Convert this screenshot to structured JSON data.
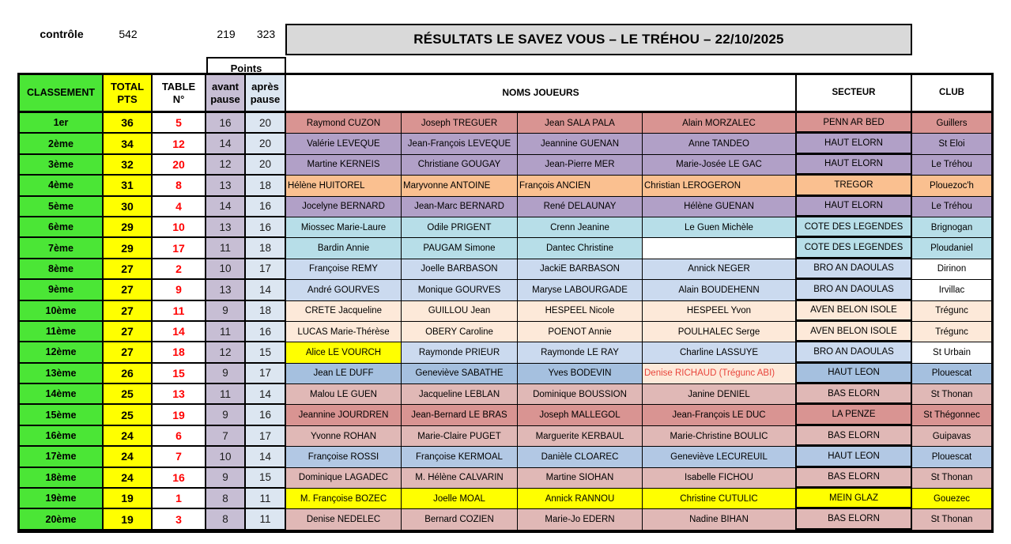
{
  "control": {
    "label": "contrôle",
    "total": "542",
    "avant": "219",
    "apres": "323"
  },
  "title": "RÉSULTATS LE SAVEZ VOUS – LE TRÉHOU – 22/10/2025",
  "points_label": "Points",
  "headers": {
    "classement": "CLASSEMENT",
    "total_line1": "TOTAL",
    "total_line2": "PTS",
    "table_line1": "TABLE",
    "table_line2": "N°",
    "avant_line1": "avant",
    "avant_line2": "pause",
    "apres_line1": "après",
    "apres_line2": "pause",
    "noms": "NOMS JOUEURS",
    "secteur": "SECTEUR",
    "club": "CLUB"
  },
  "colors": {
    "green": "#4BE636",
    "yellow": "#FFFF00",
    "lavender": "#C7BED4",
    "lightblue": "#DCE6F1",
    "titlegray": "#D9D9D9",
    "salmon": "#D99492",
    "purple": "#B1A0C7",
    "orange": "#FAC090",
    "cyan": "#B7DEE8",
    "iceblue": "#CBDAEF",
    "peach": "#FDE9D9",
    "medblue": "#A5C0DF",
    "periwinkle": "#B2C8E4",
    "rose": "#E0B8B6",
    "white": "#FFFFFF",
    "rednum": "#FF0000",
    "redtext": "#E8453C"
  },
  "rows": [
    {
      "rank": "1er",
      "total": "36",
      "table": "5",
      "avant": "16",
      "apres": "20",
      "players": [
        "Raymond CUZON",
        "Joseph TREGUER",
        "Jean SALA PALA",
        "Alain MORZALEC"
      ],
      "secteur": "PENN AR BED",
      "club": "Guillers",
      "bg": "salmon"
    },
    {
      "rank": "2ème",
      "total": "34",
      "table": "12",
      "avant": "14",
      "apres": "20",
      "players": [
        "Valérie LEVEQUE",
        "Jean-François LEVEQUE",
        "Jeannine GUENAN",
        "Anne TANDEO"
      ],
      "secteur": "HAUT ELORN",
      "club": "St Eloi",
      "bg": "purple"
    },
    {
      "rank": "3ème",
      "total": "32",
      "table": "20",
      "avant": "12",
      "apres": "20",
      "players": [
        "Martine KERNEIS",
        "Christiane GOUGAY",
        "Jean-Pierre MER",
        "Marie-Josée LE GAC"
      ],
      "secteur": "HAUT ELORN",
      "club": "Le Tréhou",
      "bg": "purple"
    },
    {
      "rank": "4ème",
      "total": "31",
      "table": "8",
      "avant": "13",
      "apres": "18",
      "players": [
        "Hélène HUITOREL",
        "Maryvonne ANTOINE",
        "François ANCIEN",
        "Christian LEROGERON"
      ],
      "secteur": "TREGOR",
      "club": "Plouezoc'h",
      "bg": "orange",
      "name_align": "left"
    },
    {
      "rank": "5ème",
      "total": "30",
      "table": "4",
      "avant": "14",
      "apres": "16",
      "players": [
        "Jocelyne BERNARD",
        "Jean-Marc BERNARD",
        "René DELAUNAY",
        "Hélène GUENAN"
      ],
      "secteur": "HAUT ELORN",
      "club": "Le Tréhou",
      "bg": "purple"
    },
    {
      "rank": "6ème",
      "total": "29",
      "table": "10",
      "avant": "13",
      "apres": "16",
      "players": [
        "Miossec Marie-Laure",
        "Odile PRIGENT",
        "Crenn Jeanine",
        "Le Guen Michèle"
      ],
      "secteur": "COTE DES LEGENDES",
      "club": "Brignogan",
      "bg": "cyan"
    },
    {
      "rank": "7ème",
      "total": "29",
      "table": "17",
      "avant": "11",
      "apres": "18",
      "players": [
        "Bardin Annie",
        "PAUGAM Simone",
        "Dantec Christine",
        ""
      ],
      "secteur": "COTE DES LEGENDES",
      "club": "Ploudaniel",
      "bg": "cyan",
      "player_bgs": [
        null,
        null,
        null,
        "white"
      ]
    },
    {
      "rank": "8ème",
      "total": "27",
      "table": "2",
      "avant": "10",
      "apres": "17",
      "players": [
        "Françoise REMY",
        "Joelle BARBASON",
        "JackiE BARBASON",
        "Annick NEGER"
      ],
      "secteur": "BRO AN DAOULAS",
      "club": "Dirinon",
      "bg": "iceblue",
      "club_bg": "white"
    },
    {
      "rank": "9ème",
      "total": "27",
      "table": "9",
      "avant": "13",
      "apres": "14",
      "players": [
        "André GOURVES",
        "Monique GOURVES",
        "Maryse LABOURGADE",
        "Alain BOUDEHENN"
      ],
      "secteur": "BRO AN DAOULAS",
      "club": "Irvillac",
      "bg": "iceblue",
      "club_bg": "white"
    },
    {
      "rank": "10ème",
      "total": "27",
      "table": "11",
      "avant": "9",
      "apres": "18",
      "players": [
        "CRETE Jacqueline",
        "GUILLOU Jean",
        "HESPEEL Nicole",
        "HESPEEL Yvon"
      ],
      "secteur": "AVEN BELON ISOLE",
      "club": "Trégunc",
      "bg": "peach"
    },
    {
      "rank": "11ème",
      "total": "27",
      "table": "14",
      "avant": "11",
      "apres": "16",
      "players": [
        "LUCAS Marie-Thérèse",
        "OBERY Caroline",
        "POENOT Annie",
        "POULHALEC Serge"
      ],
      "secteur": "AVEN BELON ISOLE",
      "club": "Trégunc",
      "bg": "peach"
    },
    {
      "rank": "12ème",
      "total": "27",
      "table": "18",
      "avant": "12",
      "apres": "15",
      "players": [
        "Alice LE VOURCH",
        "Raymonde PRIEUR",
        "Raymonde LE RAY",
        "Charline LASSUYE"
      ],
      "secteur": "BRO AN DAOULAS",
      "club": "St Urbain",
      "bg": "iceblue",
      "club_bg": "white",
      "player_bgs": [
        "yellow",
        null,
        null,
        null
      ]
    },
    {
      "rank": "13ème",
      "total": "26",
      "table": "15",
      "avant": "9",
      "apres": "17",
      "players": [
        "Jean LE DUFF",
        "Geneviève SABATHE",
        "Yves BODEVIN",
        "Denise RICHAUD (Trégunc ABI)"
      ],
      "secteur": "HAUT LEON",
      "club": "Plouescat",
      "bg": "medblue",
      "player_bgs": [
        null,
        null,
        null,
        "peach"
      ],
      "player_fgs": [
        null,
        null,
        null,
        "redtext"
      ],
      "player_aligns": [
        null,
        null,
        null,
        "left"
      ]
    },
    {
      "rank": "14ème",
      "total": "25",
      "table": "13",
      "avant": "11",
      "apres": "14",
      "players": [
        "Malou LE GUEN",
        "Jacqueline LEBLAN",
        "Dominique BOUSSION",
        "Janine DENIEL"
      ],
      "secteur": "BAS ELORN",
      "club": "St Thonan",
      "bg": "rose"
    },
    {
      "rank": "15ème",
      "total": "25",
      "table": "19",
      "avant": "9",
      "apres": "16",
      "players": [
        "Jeannine JOURDREN",
        "Jean-Bernard LE BRAS",
        "Joseph MALLEGOL",
        "Jean-François LE DUC"
      ],
      "secteur": "LA PENZE",
      "club": "St Thégonnec",
      "bg": "salmon"
    },
    {
      "rank": "16ème",
      "total": "24",
      "table": "6",
      "avant": "7",
      "apres": "17",
      "players": [
        "Yvonne ROHAN",
        "Marie-Claire PUGET",
        "Marguerite KERBAUL",
        "Marie-Christine BOULIC"
      ],
      "secteur": "BAS ELORN",
      "club": "Guipavas",
      "bg": "rose"
    },
    {
      "rank": "17ème",
      "total": "24",
      "table": "7",
      "avant": "10",
      "apres": "14",
      "players": [
        "Françoise ROSSI",
        "Françoise KERMOAL",
        "Danièle CLOAREC",
        "Geneviève LECUREUIL"
      ],
      "secteur": "HAUT LEON",
      "club": "Plouescat",
      "bg": "periwinkle"
    },
    {
      "rank": "18ème",
      "total": "24",
      "table": "16",
      "avant": "9",
      "apres": "15",
      "players": [
        "Dominique LAGADEC",
        "M. Hélène CALVARIN",
        "Martine SIOHAN",
        "Isabelle FICHOU"
      ],
      "secteur": "BAS ELORN",
      "club": "St Thonan",
      "bg": "rose"
    },
    {
      "rank": "19ème",
      "total": "19",
      "table": "1",
      "avant": "8",
      "apres": "11",
      "players": [
        "M. Françoise BOZEC",
        "Joelle MOAL",
        "Annick RANNOU",
        "Christine CUTULIC"
      ],
      "secteur": "MEIN GLAZ",
      "club": "Gouezec",
      "bg": "yellow"
    },
    {
      "rank": "20ème",
      "total": "19",
      "table": "3",
      "avant": "8",
      "apres": "11",
      "players": [
        "Denise NEDELEC",
        "Bernard COZIEN",
        "Marie-Jo EDERN",
        "Nadine BIHAN"
      ],
      "secteur": "BAS ELORN",
      "club": "St Thonan",
      "bg": "rose"
    }
  ]
}
